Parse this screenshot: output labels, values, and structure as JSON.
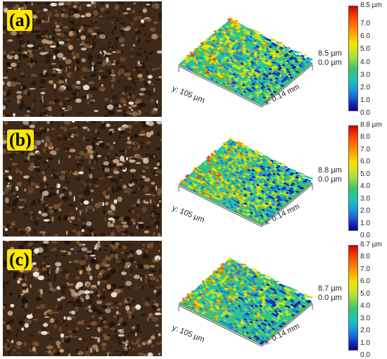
{
  "panels": [
    {
      "label": "(a)",
      "max": "8.5 µm",
      "min": "0.0 µm",
      "y_axis": "y: 105 µm",
      "x_axis": "x: 0.14 mm",
      "colorbar_top": "8.5 µm",
      "colorbar_ticks": [
        "7.0",
        "6.0",
        "5.0",
        "4.0",
        "3.0",
        "2.0",
        "1.0",
        "0.0"
      ]
    },
    {
      "label": "(b)",
      "max": "8.8 µm",
      "min": "0.0 µm",
      "y_axis": "y: 105 µm",
      "x_axis": "x: 0.14 mm",
      "colorbar_top": "8.8 µm",
      "colorbar_ticks": [
        "8.0",
        "7.0",
        "6.0",
        "5.0",
        "4.0",
        "3.0",
        "2.0",
        "1.0",
        "0.0"
      ]
    },
    {
      "label": "(c)",
      "max": "8.7 µm",
      "min": "0.0 µm",
      "y_axis": "y: 105 µm",
      "x_axis": "x: 0.14 mm",
      "colorbar_top": "8.7 µm",
      "colorbar_ticks": [
        "8.0",
        "7.0",
        "6.0",
        "5.0",
        "4.0",
        "3.0",
        "2.0",
        "1.0",
        "0.0"
      ]
    }
  ],
  "colors": {
    "label_bg": "#ffe800",
    "high": "#d40000",
    "mid": "#3ec36a",
    "low": "#080090"
  }
}
